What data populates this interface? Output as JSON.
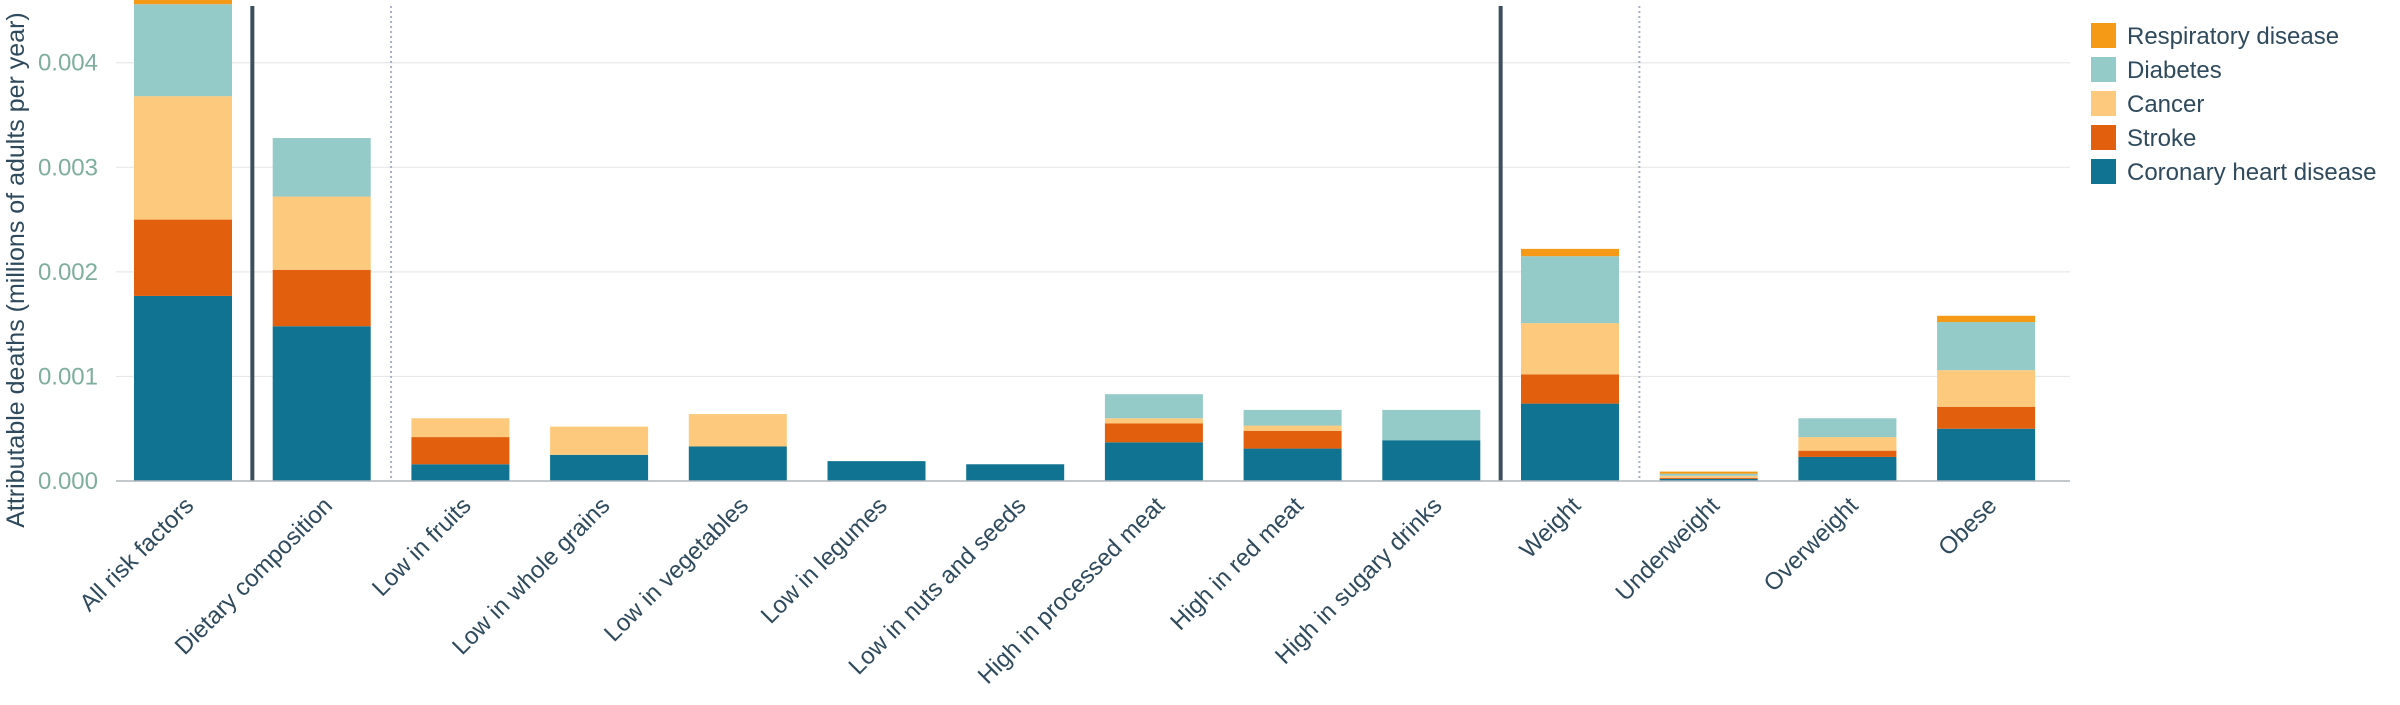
{
  "chart_data": {
    "type": "bar",
    "stacked": true,
    "title": "",
    "xlabel": "",
    "ylabel": "Attributable deaths (millions of adults per year)",
    "ylim": [
      0,
      0.0046
    ],
    "yticks": [
      "0.000",
      "0.001",
      "0.002",
      "0.003",
      "0.004"
    ],
    "ytick_values": [
      0,
      0.001,
      0.002,
      0.003,
      0.004
    ],
    "grid": true,
    "legend_position": "top-right",
    "categories": [
      "All risk factors",
      "Dietary composition",
      "Low in fruits",
      "Low in whole grains",
      "Low in vegetables",
      "Low in legumes",
      "Low in nuts and seeds",
      "High in processed meat",
      "High in red meat",
      "High in sugary drinks",
      "Weight",
      "Underweight",
      "Overweight",
      "Obese"
    ],
    "series": [
      {
        "name": "Coronary heart disease",
        "color": "#0f7391",
        "values": [
          0.00177,
          0.00148,
          0.00016,
          0.00025,
          0.00033,
          0.00019,
          0.00016,
          0.00037,
          0.00031,
          0.00039,
          0.00074,
          2e-05,
          0.00023,
          0.0005
        ]
      },
      {
        "name": "Stroke",
        "color": "#e25f0e",
        "values": [
          0.00073,
          0.00054,
          0.00026,
          0.0,
          0.0,
          0.0,
          0.0,
          0.00018,
          0.00017,
          0.0,
          0.00028,
          1e-05,
          6e-05,
          0.00021
        ]
      },
      {
        "name": "Cancer",
        "color": "#fcc97d",
        "values": [
          0.00118,
          0.0007,
          0.00018,
          0.00027,
          0.00031,
          0.0,
          0.0,
          5e-05,
          5e-05,
          0.0,
          0.00049,
          2e-05,
          0.00013,
          0.00035
        ]
      },
      {
        "name": "Diabetes",
        "color": "#94cac7",
        "values": [
          0.00088,
          0.00056,
          0.0,
          0.0,
          0.0,
          0.0,
          0.0,
          0.00023,
          0.00015,
          0.00029,
          0.00064,
          2e-05,
          0.00018,
          0.00046
        ]
      },
      {
        "name": "Respiratory disease",
        "color": "#f59a16",
        "values": [
          6e-05,
          0.0,
          0.0,
          0.0,
          0.0,
          0.0,
          0.0,
          0.0,
          0.0,
          0.0,
          7e-05,
          2e-05,
          0.0,
          6e-05
        ]
      }
    ],
    "legend_order": [
      "Respiratory disease",
      "Diabetes",
      "Cancer",
      "Stroke",
      "Coronary heart disease"
    ],
    "dividers": [
      {
        "after_index": 0,
        "style": "solid"
      },
      {
        "after_index": 1,
        "style": "dotted"
      },
      {
        "after_index": 9,
        "style": "solid"
      },
      {
        "after_index": 10,
        "style": "dotted"
      }
    ],
    "colors": {
      "axis_text_y": "#7fae9d",
      "text": "#2e4a5c",
      "grid": "#e8e8e8",
      "divider": "#3d4f5c"
    }
  }
}
